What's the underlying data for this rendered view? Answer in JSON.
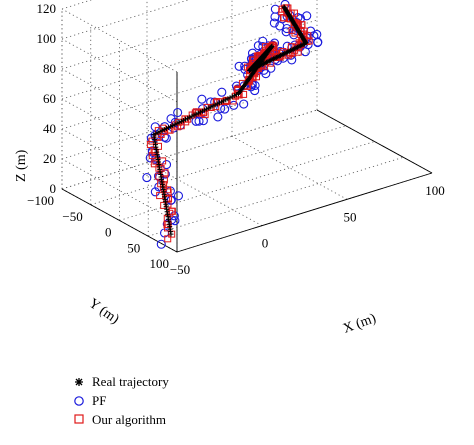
{
  "chart_data": {
    "type": "scatter",
    "projection": "3d",
    "grid": true,
    "legend_position": "bottom-left",
    "xlabel": "X (m)",
    "ylabel": "Y (m)",
    "zlabel": "Z (m)",
    "xlim": [
      -50,
      100
    ],
    "ylim": [
      -100,
      100
    ],
    "zlim": [
      0,
      120
    ],
    "x_ticks": [
      "−50",
      "0",
      "50",
      "100"
    ],
    "y_ticks": [
      "−100",
      "−50",
      "0",
      "50",
      "100"
    ],
    "z_ticks": [
      "0",
      "20",
      "40",
      "60",
      "80",
      "100",
      "120"
    ],
    "series": [
      {
        "name": "Real trajectory",
        "marker": "asterisk",
        "color": "#000000",
        "waypoints": [
          [
            -40,
            60,
            0
          ],
          [
            -40,
            30,
            60
          ],
          [
            20,
            0,
            60
          ],
          [
            60,
            -60,
            65
          ],
          [
            40,
            -40,
            60
          ],
          [
            80,
            -60,
            60
          ],
          [
            40,
            20,
            115
          ]
        ]
      },
      {
        "name": "PF",
        "marker": "circle",
        "color": "#1a1adc",
        "waypoints": [
          [
            -40,
            60,
            0
          ],
          [
            -40,
            30,
            60
          ],
          [
            20,
            0,
            60
          ],
          [
            60,
            -60,
            65
          ],
          [
            40,
            -40,
            60
          ],
          [
            80,
            -60,
            60
          ],
          [
            40,
            20,
            115
          ]
        ]
      },
      {
        "name": "Our algorithm",
        "marker": "square",
        "color": "#e01818",
        "waypoints": [
          [
            -40,
            60,
            0
          ],
          [
            -40,
            30,
            60
          ],
          [
            20,
            0,
            60
          ],
          [
            60,
            -60,
            65
          ],
          [
            40,
            -40,
            60
          ],
          [
            80,
            -60,
            60
          ],
          [
            40,
            20,
            115
          ]
        ]
      }
    ]
  }
}
